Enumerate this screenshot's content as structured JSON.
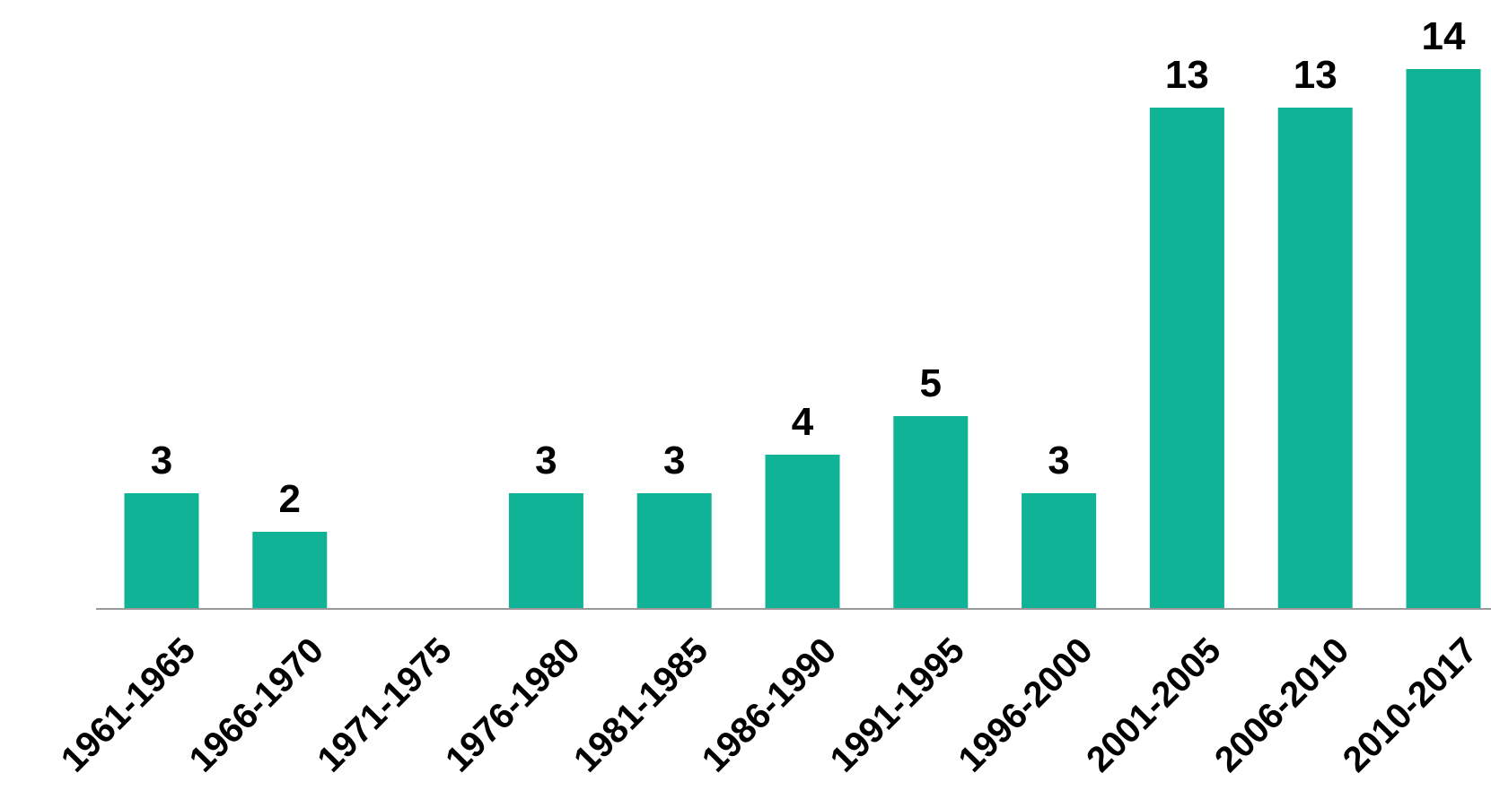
{
  "chart_data": {
    "type": "bar",
    "title": "",
    "xlabel": "",
    "ylabel": "",
    "categories": [
      "1961-1965",
      "1966-1970",
      "1971-1975",
      "1976-1980",
      "1981-1985",
      "1986-1990",
      "1991-1995",
      "1996-2000",
      "2001-2005",
      "2006-2010",
      "2010-2017"
    ],
    "values": [
      3,
      2,
      0,
      3,
      3,
      4,
      5,
      3,
      13,
      13,
      14
    ],
    "value_labels": [
      "3",
      "2",
      "",
      "3",
      "3",
      "4",
      "5",
      "3",
      "13",
      "13",
      "14"
    ],
    "ylim": [
      0,
      14
    ],
    "bar_color": "#10b396",
    "axis_color": "#999999",
    "grid": false,
    "legend": "none"
  }
}
